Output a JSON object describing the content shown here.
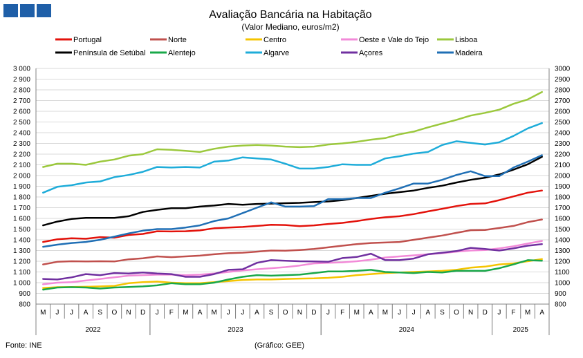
{
  "chart_data": {
    "type": "line",
    "title": "Avaliação Bancária na Habitação",
    "subtitle": "(Valor Mediano, euros/m2)",
    "source": "Fonte: INE",
    "credit": "(Gráfico: GEE)",
    "ylim": [
      800,
      3000
    ],
    "y_ticks_left": [
      "800",
      "900",
      "1 000",
      "1 100",
      "1 200",
      "1 300",
      "1 400",
      "1 500",
      "1 600",
      "1 700",
      "1 800",
      "1 900",
      "2 000",
      "2 100",
      "2 200",
      "2 300",
      "2 400",
      "2 500",
      "2 600",
      "2 700",
      "2 800",
      "2 900",
      "3 000"
    ],
    "y_ticks_right": [
      "800",
      "900",
      "1000",
      "1100",
      "1200",
      "1300",
      "1400",
      "1500",
      "1600",
      "1700",
      "1800",
      "1900",
      "2000",
      "2100",
      "2200",
      "2300",
      "2400",
      "2500",
      "2600",
      "2700",
      "2800",
      "2900",
      "3000"
    ],
    "months": [
      "M",
      "J",
      "J",
      "A",
      "S",
      "O",
      "N",
      "D",
      "J",
      "F",
      "M",
      "A",
      "M",
      "J",
      "J",
      "A",
      "S",
      "O",
      "N",
      "D",
      "J",
      "F",
      "M",
      "A",
      "M",
      "J",
      "J",
      "A",
      "S",
      "O",
      "N",
      "D",
      "J",
      "F",
      "M",
      "A"
    ],
    "years": [
      {
        "label": "2022",
        "start": 0,
        "end": 8
      },
      {
        "label": "2023",
        "start": 8,
        "end": 20
      },
      {
        "label": "2024",
        "start": 20,
        "end": 32
      },
      {
        "label": "2025",
        "start": 32,
        "end": 36
      }
    ],
    "series": [
      {
        "name": "Portugal",
        "color": "#e3120b",
        "values": [
          1380,
          1405,
          1415,
          1410,
          1425,
          1420,
          1445,
          1455,
          1480,
          1478,
          1480,
          1488,
          1508,
          1515,
          1520,
          1530,
          1540,
          1538,
          1528,
          1535,
          1548,
          1558,
          1575,
          1595,
          1610,
          1620,
          1640,
          1665,
          1690,
          1715,
          1735,
          1740,
          1770,
          1805,
          1840,
          1860
        ]
      },
      {
        "name": "Norte",
        "color": "#c0504d",
        "values": [
          1170,
          1195,
          1200,
          1198,
          1200,
          1198,
          1218,
          1228,
          1245,
          1238,
          1245,
          1252,
          1265,
          1275,
          1280,
          1290,
          1300,
          1298,
          1305,
          1315,
          1330,
          1345,
          1360,
          1370,
          1375,
          1380,
          1400,
          1420,
          1440,
          1465,
          1490,
          1492,
          1510,
          1530,
          1565,
          1590
        ]
      },
      {
        "name": "Centro",
        "color": "#f5c400",
        "values": [
          950,
          958,
          960,
          962,
          965,
          970,
          995,
          1005,
          1010,
          1000,
          995,
          995,
          1005,
          1015,
          1025,
          1030,
          1030,
          1035,
          1038,
          1040,
          1045,
          1055,
          1070,
          1080,
          1090,
          1095,
          1100,
          1105,
          1110,
          1120,
          1140,
          1150,
          1170,
          1180,
          1200,
          1220
        ]
      },
      {
        "name": "Oeste e Vale do Tejo",
        "color": "#f28ad8",
        "values": [
          985,
          1000,
          1005,
          1020,
          1035,
          1050,
          1065,
          1070,
          1075,
          1075,
          1070,
          1075,
          1085,
          1100,
          1115,
          1125,
          1135,
          1145,
          1160,
          1180,
          1185,
          1190,
          1200,
          1215,
          1235,
          1245,
          1255,
          1265,
          1275,
          1290,
          1300,
          1305,
          1320,
          1340,
          1365,
          1390
        ]
      },
      {
        "name": "Lisboa",
        "color": "#9bc83c",
        "values": [
          2080,
          2110,
          2110,
          2100,
          2130,
          2150,
          2185,
          2200,
          2245,
          2240,
          2230,
          2220,
          2250,
          2270,
          2280,
          2285,
          2280,
          2270,
          2265,
          2270,
          2290,
          2300,
          2315,
          2335,
          2350,
          2385,
          2410,
          2450,
          2485,
          2520,
          2560,
          2585,
          2615,
          2670,
          2710,
          2780
        ]
      },
      {
        "name": "Península de Setúbal",
        "color": "#000000",
        "values": [
          1535,
          1570,
          1595,
          1605,
          1605,
          1605,
          1620,
          1660,
          1680,
          1695,
          1695,
          1710,
          1720,
          1735,
          1728,
          1735,
          1738,
          1742,
          1745,
          1752,
          1758,
          1770,
          1790,
          1810,
          1830,
          1845,
          1860,
          1885,
          1905,
          1935,
          1960,
          1980,
          2010,
          2055,
          2105,
          2175
        ]
      },
      {
        "name": "Alentejo",
        "color": "#19a84a",
        "values": [
          935,
          955,
          958,
          955,
          945,
          955,
          960,
          965,
          975,
          995,
          985,
          985,
          1000,
          1030,
          1055,
          1070,
          1065,
          1070,
          1075,
          1090,
          1105,
          1105,
          1110,
          1120,
          1100,
          1095,
          1090,
          1100,
          1095,
          1110,
          1110,
          1110,
          1135,
          1170,
          1210,
          1205
        ]
      },
      {
        "name": "Algarve",
        "color": "#1eacd9",
        "values": [
          1840,
          1895,
          1910,
          1935,
          1945,
          1985,
          2005,
          2035,
          2080,
          2075,
          2080,
          2075,
          2130,
          2140,
          2170,
          2160,
          2150,
          2110,
          2065,
          2065,
          2080,
          2105,
          2100,
          2100,
          2160,
          2180,
          2205,
          2220,
          2285,
          2320,
          2305,
          2290,
          2310,
          2370,
          2440,
          2490
        ]
      },
      {
        "name": "Açores",
        "color": "#7030a0",
        "values": [
          1035,
          1030,
          1050,
          1080,
          1070,
          1090,
          1085,
          1095,
          1085,
          1080,
          1055,
          1055,
          1080,
          1120,
          1125,
          1185,
          1210,
          1205,
          1200,
          1198,
          1195,
          1230,
          1240,
          1270,
          1210,
          1210,
          1225,
          1265,
          1280,
          1295,
          1325,
          1315,
          1300,
          1320,
          1345,
          1360
        ]
      },
      {
        "name": "Madeira",
        "color": "#1f6fb5",
        "values": [
          1335,
          1355,
          1370,
          1380,
          1400,
          1430,
          1460,
          1485,
          1500,
          1500,
          1515,
          1535,
          1575,
          1600,
          1650,
          1700,
          1750,
          1710,
          1710,
          1715,
          1780,
          1780,
          1790,
          1790,
          1840,
          1880,
          1925,
          1925,
          1960,
          2005,
          2040,
          1995,
          1995,
          2075,
          2130,
          2190
        ]
      }
    ]
  }
}
